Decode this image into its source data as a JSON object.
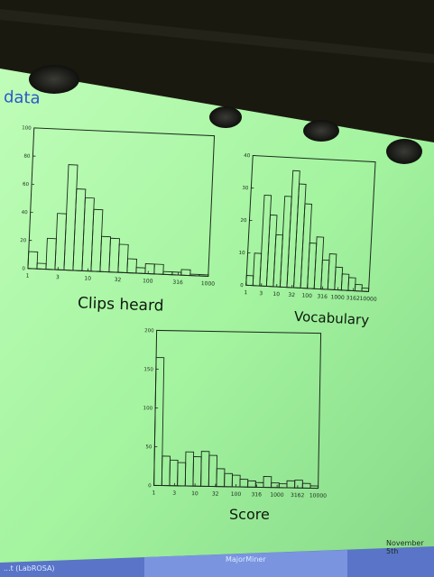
{
  "slide": {
    "title": "data",
    "footer": {
      "left": "...t (LabROSA)",
      "center": "MajorMiner",
      "right": "November 5th"
    }
  },
  "colors": {
    "screen": "#a4f6a0",
    "ink": "#1b2a1b",
    "title": "#2a58c8",
    "footer_bar": "#5a74c8"
  },
  "chart_data": [
    {
      "type": "bar",
      "xlabel": "Clips heard",
      "x_scale": "log",
      "xticks": [
        "1",
        "3",
        "10",
        "32",
        "100",
        "316",
        "1000"
      ],
      "yticks": [
        "0",
        "20",
        "40",
        "60",
        "80",
        "100"
      ],
      "ylim": [
        0,
        100
      ],
      "values": [
        12,
        4,
        22,
        40,
        75,
        58,
        52,
        44,
        25,
        24,
        20,
        10,
        4,
        7,
        7,
        2,
        2,
        4,
        1,
        1
      ]
    },
    {
      "type": "bar",
      "xlabel": "Vocabulary",
      "x_scale": "log",
      "xticks": [
        "1",
        "3",
        "10",
        "32",
        "100",
        "316",
        "1000",
        "3162",
        "10000"
      ],
      "yticks": [
        "0",
        "10",
        "20",
        "30",
        "40"
      ],
      "ylim": [
        0,
        40
      ],
      "values": [
        3,
        10,
        28,
        22,
        16,
        28,
        36,
        32,
        26,
        14,
        16,
        9,
        11,
        7,
        5,
        4,
        2,
        1
      ]
    },
    {
      "type": "bar",
      "xlabel": "Score",
      "x_scale": "log",
      "xticks": [
        "1",
        "3",
        "10",
        "32",
        "100",
        "316",
        "1000",
        "3162",
        "10000"
      ],
      "yticks": [
        "0",
        "50",
        "100",
        "150",
        "200"
      ],
      "ylim": [
        0,
        200
      ],
      "values": [
        165,
        38,
        33,
        30,
        44,
        38,
        45,
        40,
        23,
        17,
        15,
        10,
        8,
        6,
        14,
        6,
        5,
        9,
        10,
        6,
        3
      ]
    }
  ]
}
